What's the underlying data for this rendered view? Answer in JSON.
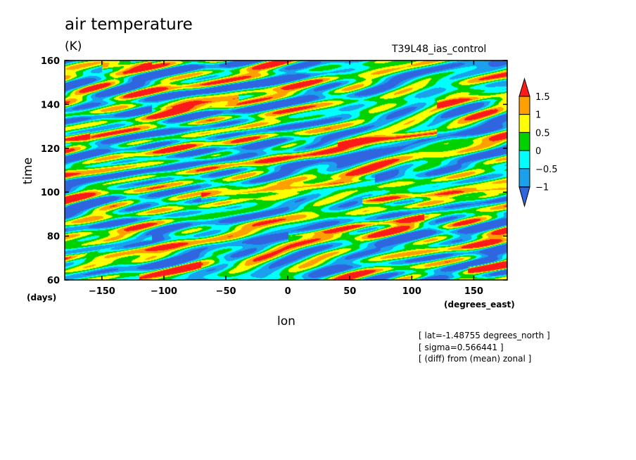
{
  "chart_data": {
    "type": "heatmap",
    "title": "air temperature",
    "units": "(K)",
    "run_label": "T39L48_ias_control",
    "xlabel": "lon",
    "ylabel": "time",
    "x_units": "(degrees_east)",
    "y_units": "(days)",
    "xlim": [
      -180,
      177
    ],
    "ylim": [
      60,
      160
    ],
    "x_ticks": [
      -150,
      -100,
      -50,
      0,
      50,
      100,
      150
    ],
    "y_ticks": [
      60,
      80,
      100,
      120,
      140,
      160
    ],
    "levels": [
      -1,
      -0.5,
      0,
      0.5,
      1,
      1.5
    ],
    "level_labels": [
      "-1",
      "-0.5",
      "0",
      "0.5",
      "1",
      "1.5"
    ],
    "colors": [
      "#3065e0",
      "#1aa0ec",
      "#00ffff",
      "#00d200",
      "#ffff00",
      "#ffa000",
      "#ff1a1a"
    ],
    "warm_streaks": [
      {
        "lon_start": -150,
        "lon_end": -110,
        "time_start": 157,
        "time_end": 159
      },
      {
        "lon_start": -110,
        "lon_end": -40,
        "time_start": 138,
        "time_end": 143
      },
      {
        "lon_start": 120,
        "lon_end": 177,
        "time_start": 140,
        "time_end": 145
      },
      {
        "lon_start": 40,
        "lon_end": 120,
        "time_start": 122,
        "time_end": 127
      },
      {
        "lon_start": -180,
        "lon_end": -160,
        "time_start": 124,
        "time_end": 126
      },
      {
        "lon_start": -70,
        "lon_end": 70,
        "time_start": 98,
        "time_end": 106
      },
      {
        "lon_start": 60,
        "lon_end": 177,
        "time_start": 96,
        "time_end": 102
      },
      {
        "lon_start": 0,
        "lon_end": 110,
        "time_start": 80,
        "time_end": 89
      },
      {
        "lon_start": -180,
        "lon_end": -110,
        "time_start": 70,
        "time_end": 79
      },
      {
        "lon_start": -120,
        "lon_end": -70,
        "time_start": 61,
        "time_end": 67
      },
      {
        "lon_start": 145,
        "lon_end": 177,
        "time_start": 65,
        "time_end": 67
      }
    ],
    "annotations": [
      "[ lat=-1.48755 degrees_north ]",
      "[ sigma=0.566441 ]",
      "[ (diff) from (mean) zonal ]"
    ]
  }
}
